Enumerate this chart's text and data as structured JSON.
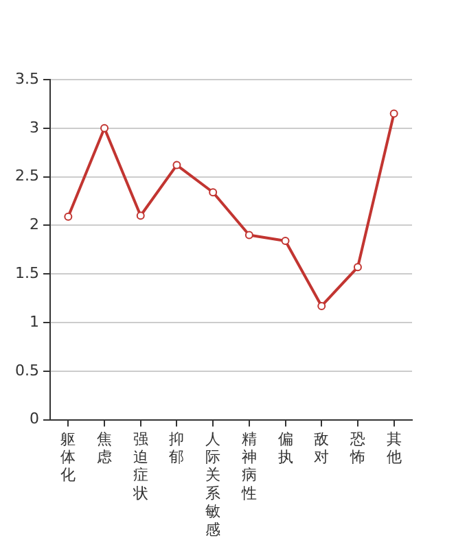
{
  "chart_data": {
    "type": "line",
    "categories": [
      "躯体化",
      "焦虑",
      "强迫症状",
      "抑郁",
      "人际关系敏感",
      "精神病性",
      "偏执",
      "敌对",
      "恐怖",
      "其他"
    ],
    "series": [
      {
        "color": "#c23531",
        "values": [
          2.09,
          3.0,
          2.1,
          2.62,
          2.34,
          1.9,
          1.84,
          1.17,
          1.57,
          3.15
        ]
      }
    ],
    "ylim": [
      0,
      3.5
    ],
    "yticks": [
      0,
      0.5,
      1,
      1.5,
      2,
      2.5,
      3,
      3.5
    ],
    "grid": "y",
    "legend": false,
    "marker": "circle",
    "line_style": "solid"
  }
}
